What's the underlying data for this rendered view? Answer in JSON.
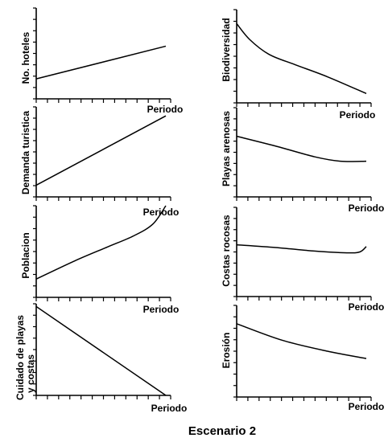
{
  "title": "Escenario 2",
  "chart_data": [
    {
      "type": "line",
      "ylabel": "No. hoteles",
      "xlabel": "Periodo",
      "x": [
        0,
        1
      ],
      "y": [
        0.22,
        0.58
      ]
    },
    {
      "type": "line",
      "ylabel": "Biodiversidad",
      "xlabel": "Periodo",
      "x": [
        0,
        0.1,
        0.25,
        0.45,
        0.7,
        1
      ],
      "y": [
        0.85,
        0.68,
        0.52,
        0.41,
        0.28,
        0.1
      ]
    },
    {
      "type": "line",
      "ylabel": "Demanda turistica",
      "xlabel": "Periodo",
      "x": [
        0,
        1
      ],
      "y": [
        0.13,
        0.9
      ]
    },
    {
      "type": "line",
      "ylabel": "Playas arenosas",
      "xlabel": "Periodo",
      "x": [
        0,
        0.3,
        0.6,
        0.8,
        1
      ],
      "y": [
        0.68,
        0.57,
        0.45,
        0.4,
        0.4
      ]
    },
    {
      "type": "line",
      "ylabel": "Poblacion",
      "xlabel": "Periodo",
      "x": [
        0,
        0.3,
        0.55,
        0.75,
        0.9,
        1
      ],
      "y": [
        0.2,
        0.4,
        0.55,
        0.67,
        0.8,
        1.0
      ]
    },
    {
      "type": "line",
      "ylabel": "Costas rocosas",
      "xlabel": "Periodo",
      "x": [
        0,
        0.3,
        0.6,
        0.85,
        0.95,
        1
      ],
      "y": [
        0.58,
        0.55,
        0.51,
        0.49,
        0.5,
        0.56
      ]
    },
    {
      "type": "line",
      "ylabel": "Cuidado de playas y costas",
      "xlabel": "Periodo",
      "x": [
        0,
        1
      ],
      "y": [
        0.97,
        0
      ]
    },
    {
      "type": "line",
      "ylabel": "Erosión",
      "xlabel": "Periodo",
      "x": [
        0,
        0.35,
        0.7,
        1
      ],
      "y": [
        0.8,
        0.62,
        0.5,
        0.42
      ]
    }
  ]
}
